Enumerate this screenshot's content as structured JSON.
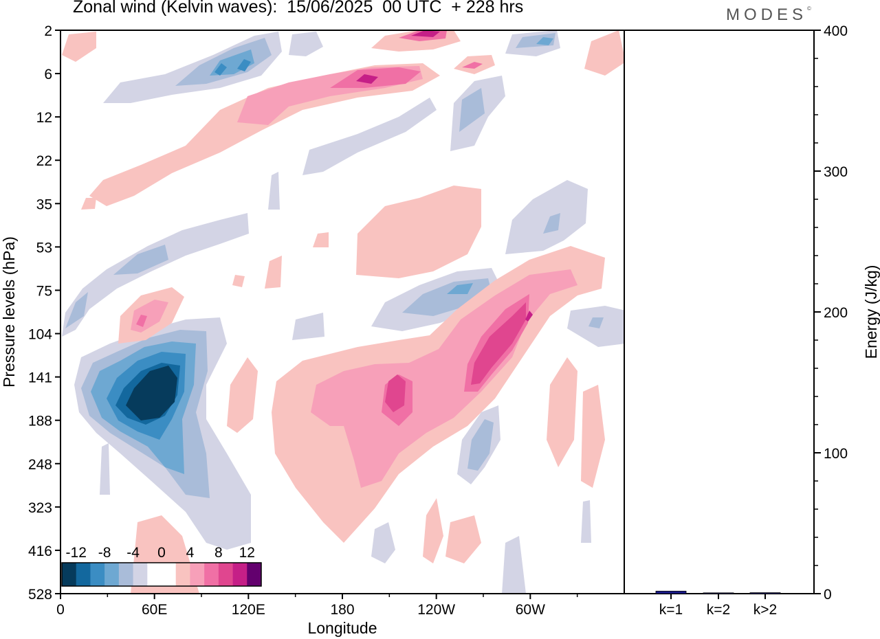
{
  "header": {
    "title": "Zonal wind (Kelvin waves):  15/06/2025  00 UTC  + 228 hrs",
    "logo": "MODES",
    "logo_mark": "©"
  },
  "colors": {
    "neg_2": "#d3d4e5",
    "neg_4": "#a9bcd9",
    "neg_6": "#6ea8d2",
    "neg_8": "#3b8dc3",
    "neg_10": "#13689e",
    "neg_12": "#063b5c",
    "pos_2": "#f9c3c0",
    "pos_4": "#f7a0b9",
    "pos_6": "#f070a5",
    "pos_8": "#e0468f",
    "pos_10": "#c51f87",
    "pos_12": "#63006e",
    "bar": "#1a1a8c"
  },
  "chart_data": [
    {
      "type": "heatmap",
      "title": "Zonal wind (Kelvin waves):  15/06/2025  00 UTC  + 228 hrs",
      "xlabel": "Longitude",
      "ylabel": "Pressure levels (hPa)",
      "x_ticks": [
        "0",
        "60E",
        "120E",
        "180",
        "120W",
        "60W"
      ],
      "y_ticks": [
        "2",
        "6",
        "12",
        "22",
        "35",
        "53",
        "75",
        "104",
        "141",
        "188",
        "248",
        "323",
        "416",
        "528"
      ],
      "colorbar_ticks": [
        "-12",
        "-8",
        "-4",
        "0",
        "4",
        "8",
        "12"
      ],
      "features": [
        {
          "lon": 68,
          "p": 150,
          "value": -12
        },
        {
          "lon": 70,
          "p": 130,
          "value": -10
        },
        {
          "lon": 72,
          "p": 110,
          "value": -6
        },
        {
          "lon": 100,
          "p": 6,
          "value": -6
        },
        {
          "lon": 118,
          "p": 7,
          "value": -6
        },
        {
          "lon": 248,
          "p": 80,
          "value": -6
        },
        {
          "lon": 218,
          "p": 6,
          "value": 8
        },
        {
          "lon": 240,
          "p": 2,
          "value": 8
        },
        {
          "lon": 190,
          "p": 160,
          "value": 6
        },
        {
          "lon": 215,
          "p": 145,
          "value": 8
        },
        {
          "lon": 300,
          "p": 115,
          "value": 10
        },
        {
          "lon": 52,
          "p": 100,
          "value": 6
        },
        {
          "lon": 163,
          "p": 9,
          "value": 6
        },
        {
          "lon": 258,
          "p": 175,
          "value": -4
        },
        {
          "lon": 318,
          "p": 40,
          "value": -4
        }
      ]
    },
    {
      "type": "bar",
      "ylabel": "Energy (J/kg)",
      "categories": [
        "k=1",
        "k=2",
        "k>2"
      ],
      "values": [
        1.8,
        0.5,
        0.7
      ],
      "ylim": [
        0,
        400
      ],
      "y_ticks": [
        "0",
        "100",
        "200",
        "300",
        "400"
      ]
    }
  ]
}
